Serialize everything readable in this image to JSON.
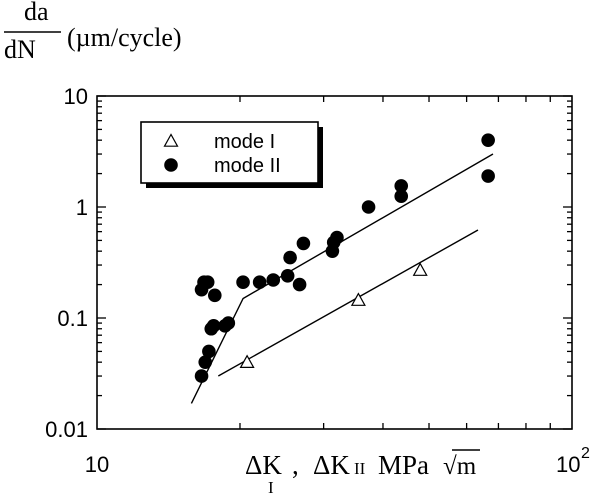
{
  "chart_data": {
    "type": "scatter",
    "ylabel_numerator": "da",
    "ylabel_denominator": "dN",
    "ylabel_units": "(µm/cycle)",
    "xlabel_parts": {
      "delta1": "ΔK",
      "sub1": "I",
      "comma": ",",
      "delta2": "ΔK",
      "sub2": "II",
      "unit": "MPa",
      "root": "√m"
    },
    "x_scale": "log",
    "y_scale": "log",
    "xlim": [
      10,
      100
    ],
    "ylim": [
      0.01,
      10
    ],
    "x_tick_labels": [
      {
        "value": 10,
        "base": "10",
        "exp": ""
      },
      {
        "value": 100,
        "base": "10",
        "exp": "2"
      }
    ],
    "y_tick_labels": [
      {
        "value": 10,
        "label": "10"
      },
      {
        "value": 1,
        "label": "1"
      },
      {
        "value": 0.1,
        "label": "0.1"
      },
      {
        "value": 0.01,
        "label": "0.01"
      }
    ],
    "legend": {
      "position": "top-left",
      "entries": [
        {
          "label": "mode I",
          "marker": "triangle-open"
        },
        {
          "label": "mode II",
          "marker": "circle-filled"
        }
      ]
    },
    "series": [
      {
        "name": "mode I",
        "marker": "triangle-open",
        "points": [
          {
            "x": 20.7,
            "y": 0.04
          },
          {
            "x": 35.5,
            "y": 0.145
          },
          {
            "x": 47.9,
            "y": 0.27
          }
        ]
      },
      {
        "name": "mode II",
        "marker": "circle-filled",
        "points": [
          {
            "x": 16.6,
            "y": 0.03
          },
          {
            "x": 16.9,
            "y": 0.04
          },
          {
            "x": 17.2,
            "y": 0.05
          },
          {
            "x": 17.4,
            "y": 0.08
          },
          {
            "x": 17.6,
            "y": 0.085
          },
          {
            "x": 18.6,
            "y": 0.085
          },
          {
            "x": 18.9,
            "y": 0.09
          },
          {
            "x": 16.6,
            "y": 0.18
          },
          {
            "x": 16.8,
            "y": 0.21
          },
          {
            "x": 17.1,
            "y": 0.21
          },
          {
            "x": 17.7,
            "y": 0.16
          },
          {
            "x": 20.3,
            "y": 0.21
          },
          {
            "x": 22.0,
            "y": 0.21
          },
          {
            "x": 23.5,
            "y": 0.22
          },
          {
            "x": 25.2,
            "y": 0.24
          },
          {
            "x": 25.5,
            "y": 0.35
          },
          {
            "x": 26.7,
            "y": 0.2
          },
          {
            "x": 27.2,
            "y": 0.47
          },
          {
            "x": 31.3,
            "y": 0.4
          },
          {
            "x": 31.5,
            "y": 0.48
          },
          {
            "x": 32.0,
            "y": 0.53
          },
          {
            "x": 37.3,
            "y": 1.0
          },
          {
            "x": 43.7,
            "y": 1.25
          },
          {
            "x": 43.7,
            "y": 1.55
          },
          {
            "x": 66.6,
            "y": 1.9
          },
          {
            "x": 66.6,
            "y": 4.0
          }
        ]
      }
    ],
    "fit_lines": [
      {
        "name": "mode II fit",
        "points": [
          [
            15.8,
            0.017
          ],
          [
            20.3,
            0.15
          ],
          [
            68.2,
            3.0
          ]
        ]
      },
      {
        "name": "mode I fit",
        "points": [
          [
            18.0,
            0.03
          ],
          [
            63.4,
            0.62
          ]
        ]
      }
    ]
  }
}
